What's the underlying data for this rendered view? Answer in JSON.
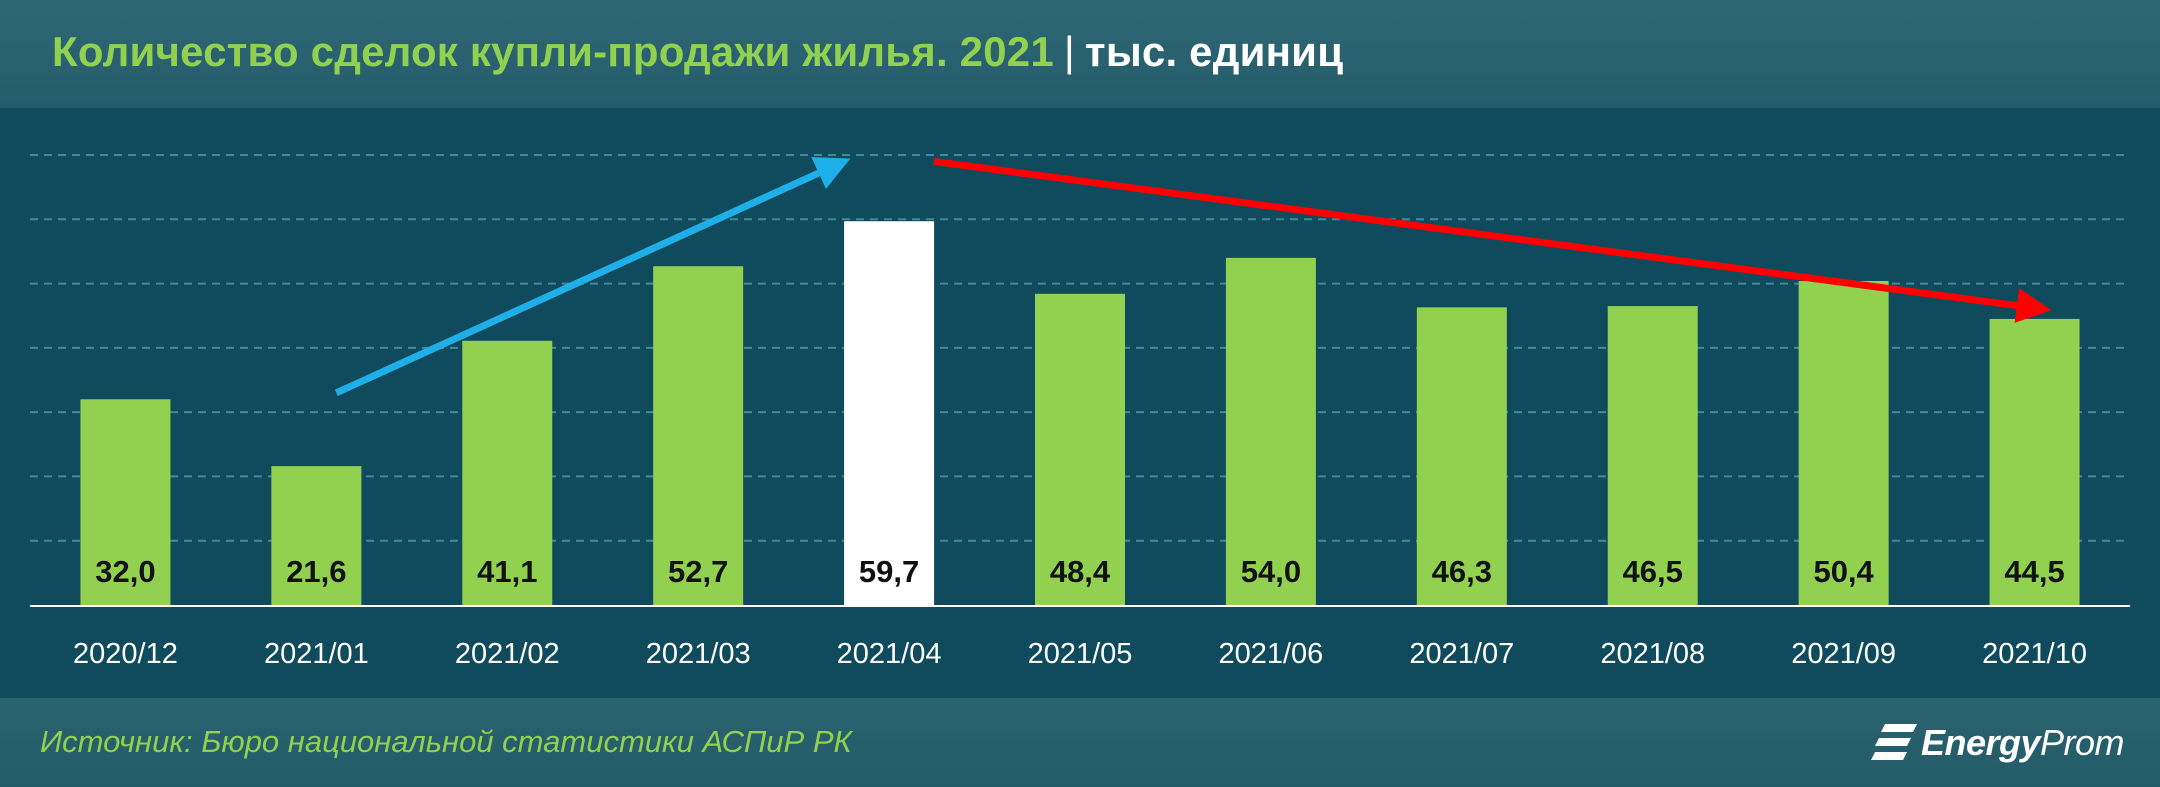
{
  "header": {
    "title": "Количество сделок купли-продажи жилья. 2021",
    "separator": "|",
    "unit": "тыс. единиц"
  },
  "footer": {
    "source": "Источник: Бюро национальной статистики АСПиР РК",
    "logo_bold": "Energy",
    "logo_light": "Prom"
  },
  "chart_data": {
    "type": "bar",
    "categories": [
      "2020/12",
      "2021/01",
      "2021/02",
      "2021/03",
      "2021/04",
      "2021/05",
      "2021/06",
      "2021/07",
      "2021/08",
      "2021/09",
      "2021/10"
    ],
    "values": [
      32.0,
      21.6,
      41.1,
      52.7,
      59.7,
      48.4,
      54.0,
      46.3,
      46.5,
      50.4,
      44.5
    ],
    "value_labels": [
      "32,0",
      "21,6",
      "41,1",
      "52,7",
      "59,7",
      "48,4",
      "54,0",
      "46,3",
      "46,5",
      "50,4",
      "44,5"
    ],
    "ylim": [
      0,
      70
    ],
    "grid": true,
    "highlight_index": 4,
    "colors": {
      "bar": "#92d050",
      "highlight_bar": "#ffffff",
      "up_arrow": "#1eaee8",
      "down_arrow": "#ff0000",
      "grid": "#3f8a9c"
    },
    "annotations": [
      {
        "kind": "arrow",
        "direction": "up",
        "from_index": 1,
        "from_value": 33,
        "to_index": 4,
        "to_value": 69
      },
      {
        "kind": "arrow",
        "direction": "down",
        "from_index": 4,
        "from_value": 69,
        "to_index": 10,
        "to_value": 46
      }
    ]
  }
}
